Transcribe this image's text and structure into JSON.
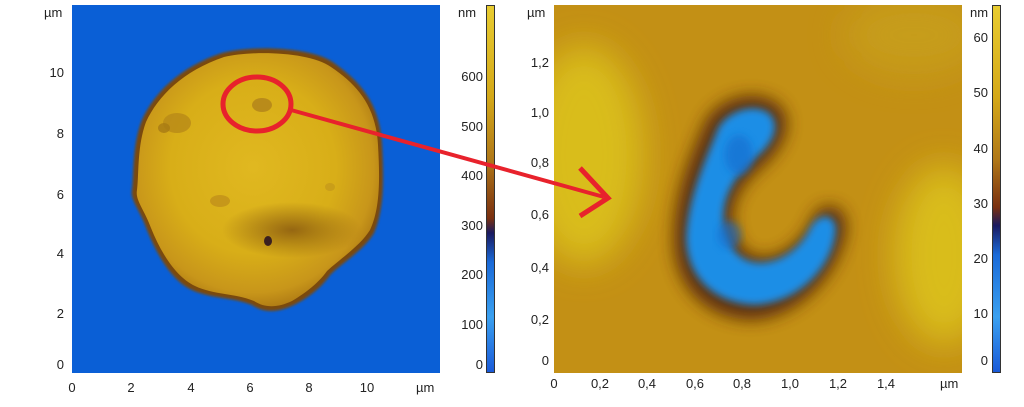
{
  "left_panel": {
    "unit_y": "µm",
    "unit_x": "µm",
    "y_ticks": [
      "10",
      "8",
      "6",
      "4",
      "2",
      "0"
    ],
    "x_ticks": [
      "0",
      "2",
      "4",
      "6",
      "8",
      "10"
    ],
    "colorbar": {
      "unit": "nm",
      "ticks": [
        "600",
        "500",
        "400",
        "300",
        "200",
        "100",
        "0"
      ]
    }
  },
  "right_panel": {
    "unit_y": "µm",
    "unit_x": "µm",
    "y_ticks": [
      "1,2",
      "1,0",
      "0,8",
      "0,6",
      "0,4",
      "0,2",
      "0"
    ],
    "x_ticks": [
      "0",
      "0,2",
      "0,4",
      "0,6",
      "0,8",
      "1,0",
      "1,2",
      "1,4"
    ],
    "colorbar": {
      "unit": "nm",
      "ticks": [
        "60",
        "50",
        "40",
        "30",
        "20",
        "10",
        "0"
      ]
    }
  },
  "colors": {
    "background_blue": "#0a5fd6",
    "cell_yellow": "#d6ad16",
    "ring_red": "#e8222c",
    "arrow_red": "#e8222c"
  }
}
